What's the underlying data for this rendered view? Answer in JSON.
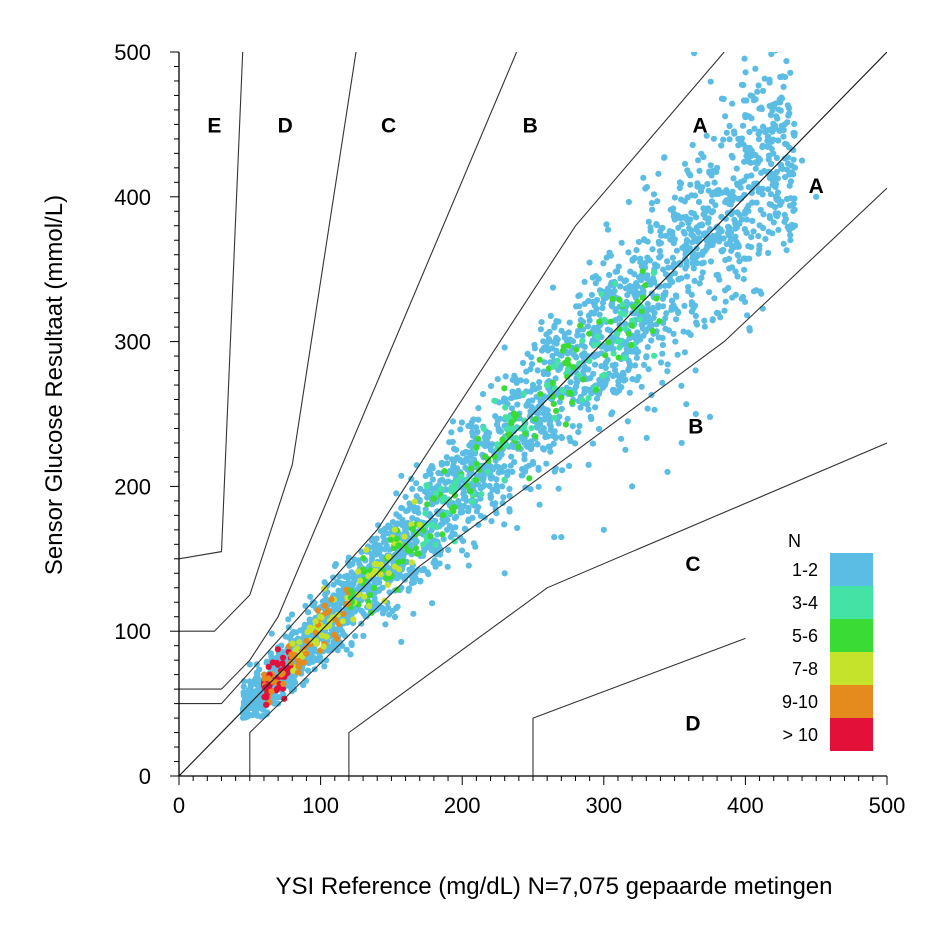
{
  "chart_data": {
    "type": "scatter",
    "title": "",
    "xlabel": "YSI Reference (mg/dL) N=7,075 gepaarde metingen",
    "ylabel": "Sensor Glucose Resultaat (mmol/L)",
    "xlim": [
      0,
      500
    ],
    "ylim": [
      0,
      500
    ],
    "xticks": [
      "0",
      "100",
      "200",
      "300",
      "400",
      "500"
    ],
    "yticks": [
      "0",
      "100",
      "200",
      "300",
      "400",
      "500"
    ],
    "grid": false,
    "zone_labels": [
      {
        "text": "E",
        "x": 25,
        "y": 450
      },
      {
        "text": "D",
        "x": 75,
        "y": 450
      },
      {
        "text": "C",
        "x": 148,
        "y": 450
      },
      {
        "text": "B",
        "x": 248,
        "y": 450
      },
      {
        "text": "A",
        "x": 368,
        "y": 450
      },
      {
        "text": "A",
        "x": 450,
        "y": 408
      },
      {
        "text": "B",
        "x": 365,
        "y": 242
      },
      {
        "text": "C",
        "x": 363,
        "y": 147
      },
      {
        "text": "D",
        "x": 363,
        "y": 37
      }
    ],
    "zone_boundaries": [
      [
        [
          0,
          0
        ],
        [
          500,
          500
        ]
      ],
      [
        [
          0,
          50
        ],
        [
          30,
          50
        ],
        [
          140,
          170
        ],
        [
          280,
          380
        ],
        [
          385,
          500
        ]
      ],
      [
        [
          50,
          0
        ],
        [
          50,
          30
        ],
        [
          170,
          145
        ],
        [
          385,
          300
        ],
        [
          500,
          406
        ]
      ],
      [
        [
          0,
          60
        ],
        [
          30,
          60
        ],
        [
          50,
          80
        ],
        [
          70,
          110
        ],
        [
          260,
          550
        ]
      ],
      [
        [
          0,
          100
        ],
        [
          25,
          100
        ],
        [
          50,
          125
        ],
        [
          80,
          215
        ],
        [
          125,
          500
        ]
      ],
      [
        [
          0,
          150
        ],
        [
          30,
          155
        ],
        [
          45,
          500
        ]
      ],
      [
        [
          120,
          0
        ],
        [
          120,
          30
        ],
        [
          260,
          130
        ],
        [
          500,
          230
        ]
      ],
      [
        [
          250,
          0
        ],
        [
          250,
          40
        ],
        [
          400,
          95
        ]
      ]
    ],
    "reference_line": {
      "points": [
        [
          0,
          0
        ],
        [
          500,
          500
        ]
      ]
    },
    "scatter_band": {
      "x_range": [
        45,
        435
      ],
      "n_points": 7075,
      "description_bins": "density binned counts"
    },
    "outliers": [
      [
        365,
        250
      ],
      [
        375,
        248
      ],
      [
        355,
        230
      ],
      [
        345,
        210
      ],
      [
        320,
        200
      ],
      [
        300,
        170
      ],
      [
        270,
        165
      ],
      [
        230,
        140
      ],
      [
        265,
        165
      ],
      [
        450,
        400
      ],
      [
        435,
        380
      ],
      [
        440,
        425
      ],
      [
        395,
        440
      ],
      [
        400,
        455
      ],
      [
        410,
        445
      ],
      [
        380,
        420
      ],
      [
        70,
        50
      ]
    ],
    "legend": {
      "title": "N",
      "position": "bottom-right",
      "entries": [
        {
          "label": "1-2",
          "color": "#5BBDE4"
        },
        {
          "label": "3-4",
          "color": "#44E3A5"
        },
        {
          "label": "5-6",
          "color": "#3BDB35"
        },
        {
          "label": "7-8",
          "color": "#C5E32B"
        },
        {
          "label": "9-10",
          "color": "#E58A1C"
        },
        {
          "label": "> 10",
          "color": "#E3103A"
        }
      ]
    }
  }
}
